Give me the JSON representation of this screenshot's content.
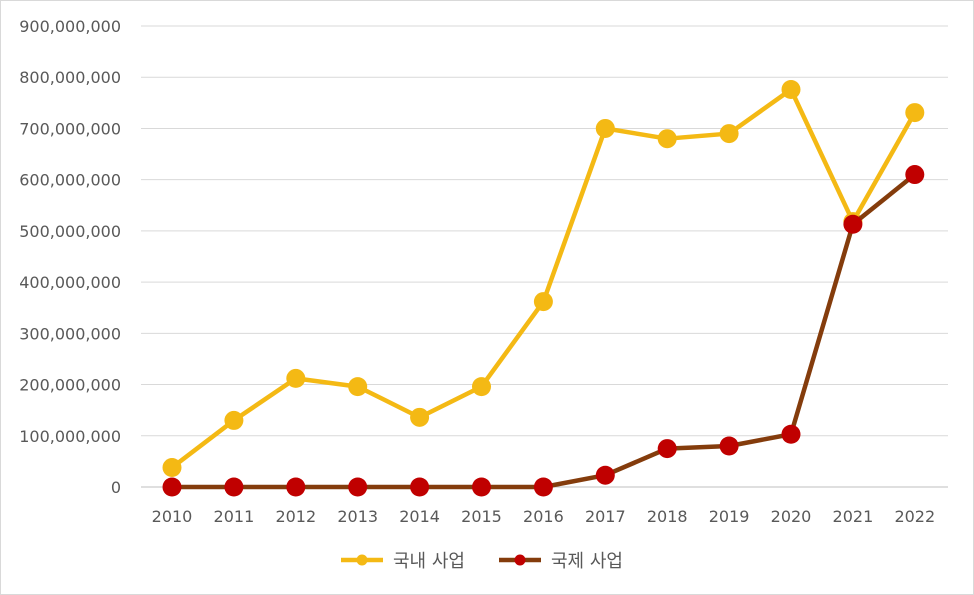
{
  "chart_data": {
    "type": "line",
    "title": "",
    "xlabel": "",
    "ylabel": "",
    "categories": [
      "2010",
      "2011",
      "2012",
      "2013",
      "2014",
      "2015",
      "2016",
      "2017",
      "2018",
      "2019",
      "2020",
      "2021",
      "2022"
    ],
    "ylim": [
      0,
      900000000
    ],
    "yticks": [
      0,
      100000000,
      200000000,
      300000000,
      400000000,
      500000000,
      600000000,
      700000000,
      800000000,
      900000000
    ],
    "ytick_labels": [
      "0",
      "100,000,000",
      "200,000,000",
      "300,000,000",
      "400,000,000",
      "500,000,000",
      "600,000,000",
      "700,000,000",
      "800,000,000",
      "900,000,000"
    ],
    "grid": true,
    "legend_position": "bottom",
    "series": [
      {
        "name": "국내 사업",
        "color": "#f4b914",
        "values": [
          38000000,
          130000000,
          212000000,
          196000000,
          136000000,
          196000000,
          362000000,
          700000000,
          680000000,
          690000000,
          776000000,
          518000000,
          731000000
        ]
      },
      {
        "name": "국제 사업",
        "color": "#843c0c",
        "marker_color": "#c00000",
        "values": [
          0,
          0,
          0,
          0,
          0,
          0,
          0,
          23000000,
          75000000,
          80000000,
          103000000,
          513000000,
          610000000
        ]
      }
    ]
  }
}
